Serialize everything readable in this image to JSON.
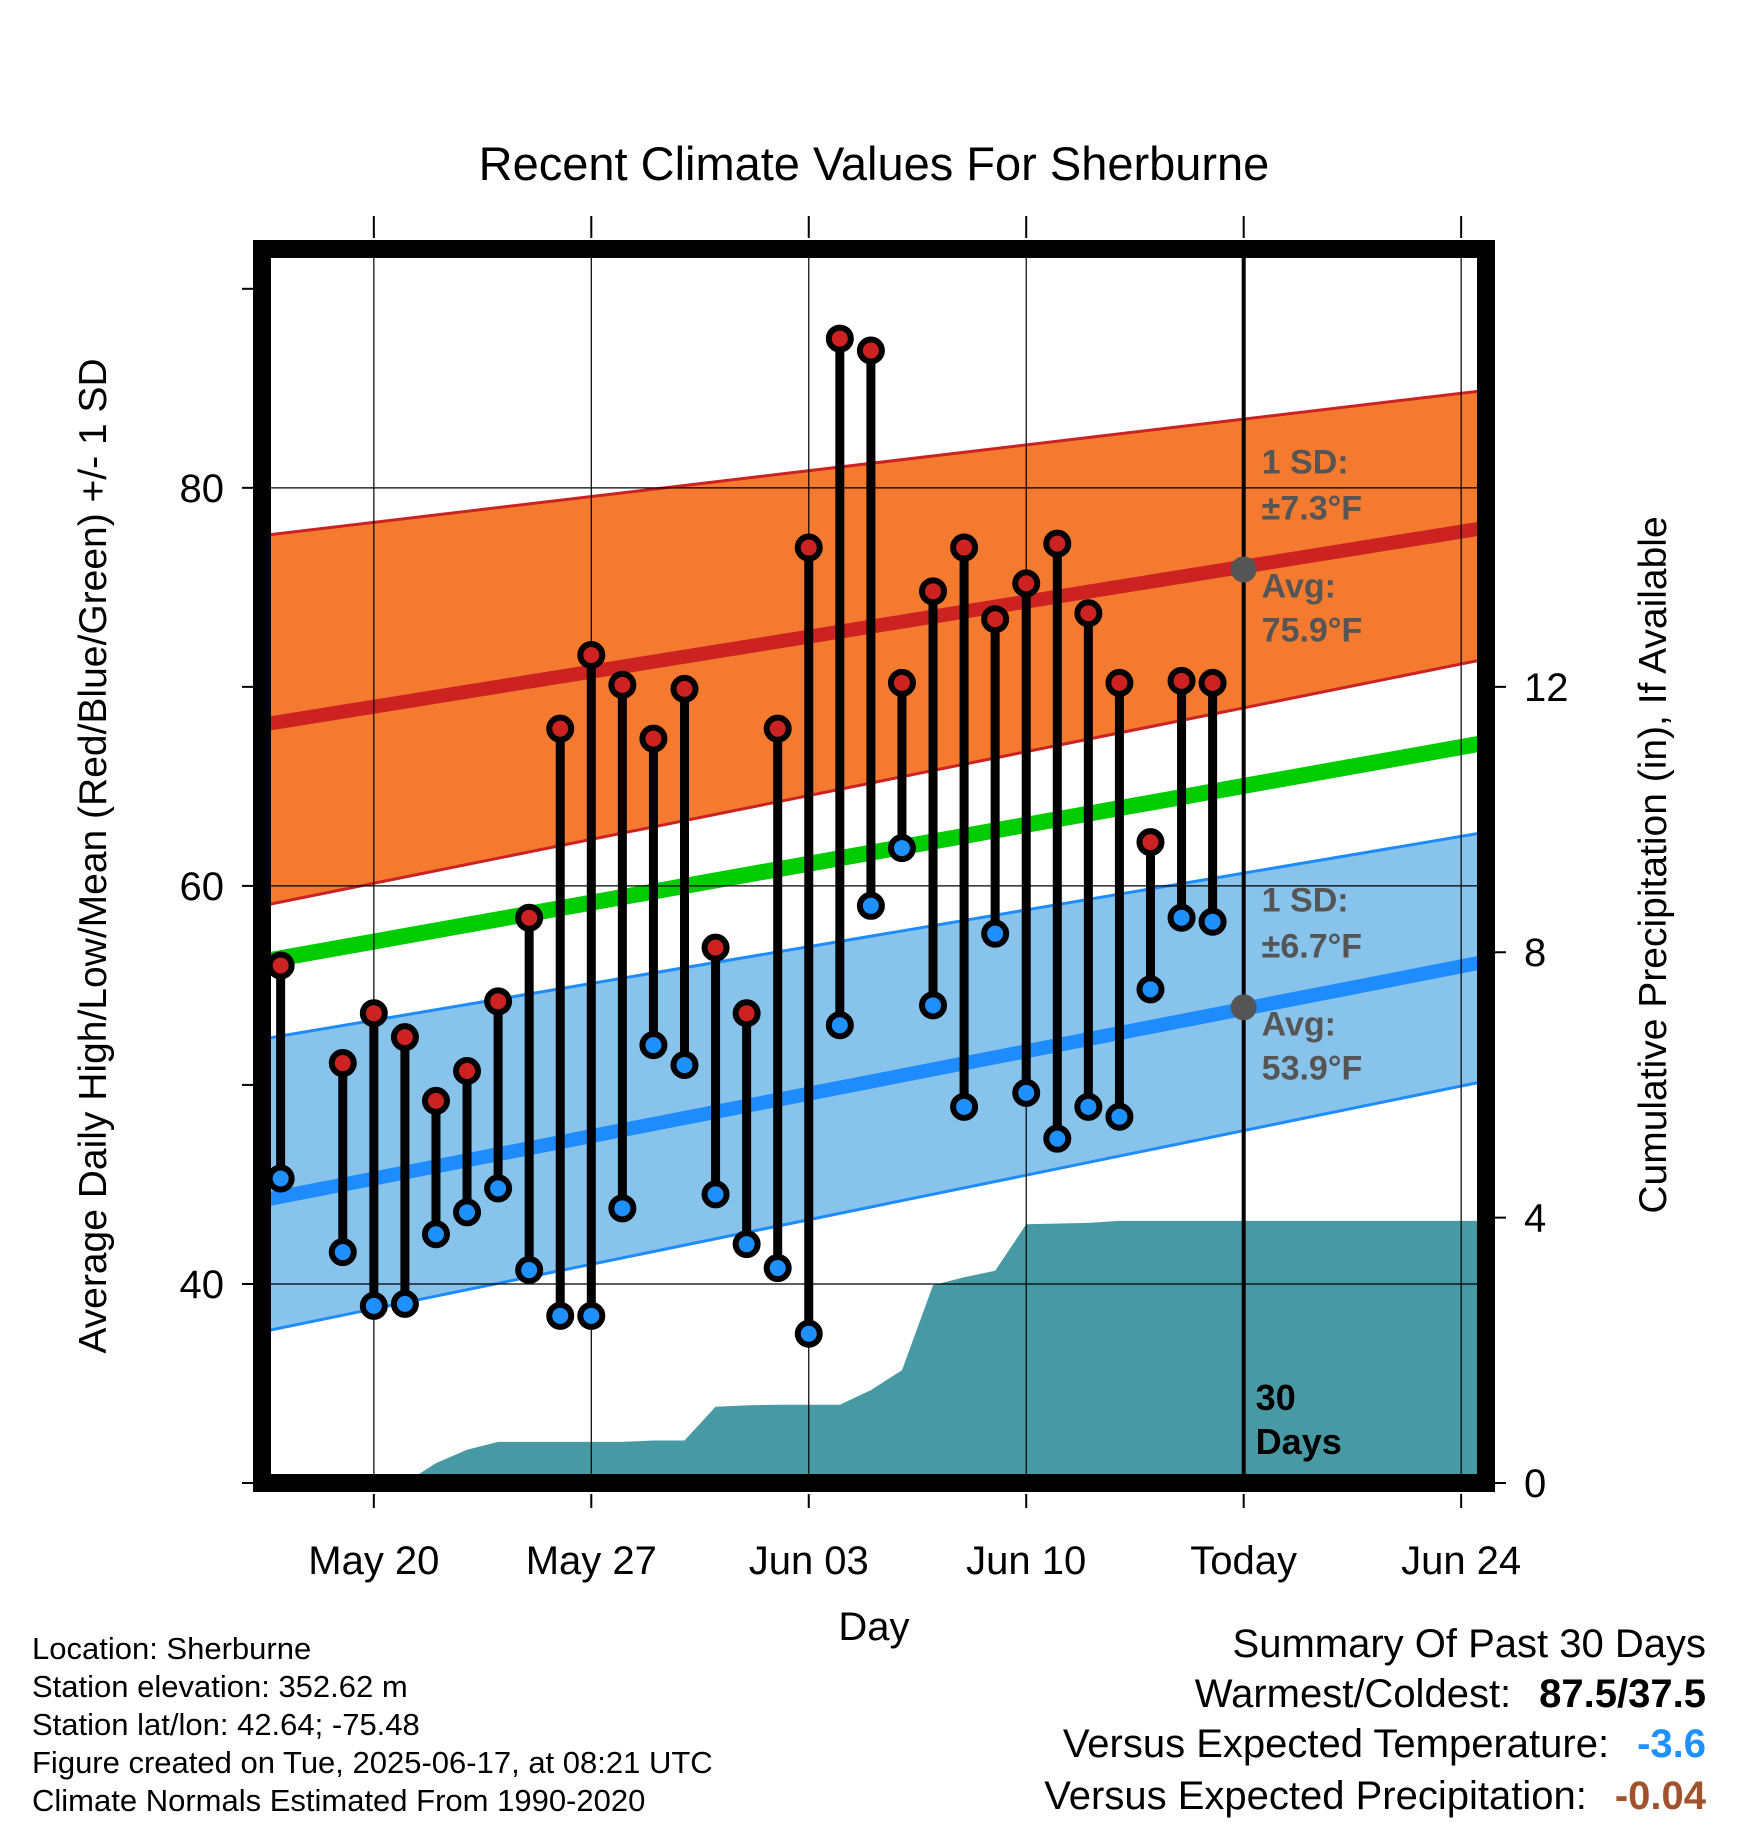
{
  "chart_data": {
    "type": "line",
    "title": "Recent Climate Values For Sherburne",
    "xlabel": "Day",
    "ylabel": "Average Daily High/Low/Mean (Red/Blue/Green) +/- 1 SD",
    "y2label": "Cumulative Precipitation (in), If Available",
    "xlim": [
      -3.6,
      35.8
    ],
    "ylim": [
      30,
      92
    ],
    "y2lim": [
      0,
      18.6
    ],
    "x_ticks": [
      {
        "day": 0,
        "label": "May 20"
      },
      {
        "day": 7,
        "label": "May 27"
      },
      {
        "day": 14,
        "label": "Jun 03"
      },
      {
        "day": 21,
        "label": "Jun 10"
      },
      {
        "day": 28,
        "label": "Today"
      },
      {
        "day": 35,
        "label": "Jun 24"
      }
    ],
    "y_ticks_labeled": [
      40,
      60,
      80
    ],
    "y_ticks_minor": [
      30,
      50,
      70,
      90
    ],
    "y2_ticks": [
      0,
      4,
      8,
      12
    ],
    "today_day": 28,
    "normals": {
      "high": {
        "mean_start": 68.1,
        "mean_end": 78.0,
        "upper_start": 77.6,
        "upper_end": 84.9,
        "lower_start": 59.0,
        "lower_end": 71.4,
        "sd_label": "1 SD:",
        "sd_value": "±7.3°F",
        "avg_label": "Avg:",
        "avg_value": "75.9°F",
        "avg_at_today": 75.9
      },
      "mean": {
        "start": 56.2,
        "end": 67.2
      },
      "low": {
        "mean_start": 44.2,
        "mean_end": 56.2,
        "upper_start": 52.3,
        "upper_end": 62.7,
        "lower_start": 37.6,
        "lower_end": 50.2,
        "sd_label": "1 SD:",
        "sd_value": "±6.7°F",
        "avg_label": "Avg:",
        "avg_value": "53.9°F",
        "avg_at_today": 53.9
      }
    },
    "daily": [
      {
        "day": -3,
        "high": 56.0,
        "low": 45.3
      },
      {
        "day": -1,
        "high": 51.1,
        "low": 41.6
      },
      {
        "day": 0,
        "high": 53.6,
        "low": 38.9
      },
      {
        "day": 1,
        "high": 52.4,
        "low": 39.0
      },
      {
        "day": 2,
        "high": 49.2,
        "low": 42.5
      },
      {
        "day": 3,
        "high": 50.7,
        "low": 43.6
      },
      {
        "day": 4,
        "high": 54.2,
        "low": 44.8
      },
      {
        "day": 5,
        "high": 58.4,
        "low": 40.7
      },
      {
        "day": 6,
        "high": 67.9,
        "low": 38.4
      },
      {
        "day": 7,
        "high": 71.6,
        "low": 38.4
      },
      {
        "day": 8,
        "high": 70.1,
        "low": 43.8
      },
      {
        "day": 9,
        "high": 67.4,
        "low": 52.0
      },
      {
        "day": 10,
        "high": 69.9,
        "low": 51.0
      },
      {
        "day": 11,
        "high": 56.9,
        "low": 44.5
      },
      {
        "day": 12,
        "high": 53.6,
        "low": 42.0
      },
      {
        "day": 13,
        "high": 67.9,
        "low": 40.8
      },
      {
        "day": 14,
        "high": 77.0,
        "low": 37.5
      },
      {
        "day": 15,
        "high": 87.5,
        "low": 53.0
      },
      {
        "day": 16,
        "high": 86.9,
        "low": 59.0
      },
      {
        "day": 17,
        "high": 70.2,
        "low": 61.9
      },
      {
        "day": 18,
        "high": 74.8,
        "low": 54.0
      },
      {
        "day": 19,
        "high": 77.0,
        "low": 48.9
      },
      {
        "day": 20,
        "high": 73.4,
        "low": 57.6
      },
      {
        "day": 21,
        "high": 75.2,
        "low": 49.6
      },
      {
        "day": 22,
        "high": 77.2,
        "low": 47.3
      },
      {
        "day": 23,
        "high": 73.7,
        "low": 48.9
      },
      {
        "day": 24,
        "high": 70.2,
        "low": 48.4
      },
      {
        "day": 25,
        "high": 62.2,
        "low": 54.8
      },
      {
        "day": 26,
        "high": 70.3,
        "low": 58.4
      },
      {
        "day": 27,
        "high": 70.2,
        "low": 58.2
      }
    ],
    "precip_cumulative": [
      {
        "day": -3.6,
        "in": 0
      },
      {
        "day": 1,
        "in": 0
      },
      {
        "day": 2,
        "in": 0.3
      },
      {
        "day": 3,
        "in": 0.5
      },
      {
        "day": 4,
        "in": 0.62
      },
      {
        "day": 5,
        "in": 0.62
      },
      {
        "day": 8,
        "in": 0.62
      },
      {
        "day": 9,
        "in": 0.64
      },
      {
        "day": 10,
        "in": 0.64
      },
      {
        "day": 11,
        "in": 1.15
      },
      {
        "day": 12,
        "in": 1.17
      },
      {
        "day": 13,
        "in": 1.18
      },
      {
        "day": 15,
        "in": 1.18
      },
      {
        "day": 16,
        "in": 1.4
      },
      {
        "day": 17,
        "in": 1.7
      },
      {
        "day": 18,
        "in": 2.98
      },
      {
        "day": 19,
        "in": 3.1
      },
      {
        "day": 20,
        "in": 3.2
      },
      {
        "day": 21,
        "in": 3.9
      },
      {
        "day": 23,
        "in": 3.92
      },
      {
        "day": 24,
        "in": 3.95
      },
      {
        "day": 28,
        "in": 3.95
      },
      {
        "day": 35.8,
        "in": 3.95
      }
    ],
    "window_label_line1": "30",
    "window_label_line2": "Days"
  },
  "footer": {
    "location": "Location: Sherburne",
    "elevation": "Station elevation: 352.62 m",
    "latlon": "Station lat/lon: 42.64; -75.48",
    "created": "Figure created on Tue, 2025-06-17, at 08:21 UTC",
    "normals": "Climate Normals Estimated From 1990-2020"
  },
  "summary": {
    "title": "Summary Of Past 30 Days",
    "warm_cold_label": "Warmest/Coldest:",
    "warm_cold_value": "87.5/37.5",
    "temp_label": "Versus Expected Temperature:",
    "temp_value": "-3.6",
    "temp_color": "#1e90ff",
    "precip_label": "Versus Expected Precipitation:",
    "precip_value": "-0.04",
    "precip_color": "#a0522d"
  },
  "colors": {
    "high_band": "#f47a30",
    "high_line": "#cc2222",
    "low_band": "#87c3ea",
    "low_line": "#1e8cff",
    "mean_line": "#00cc00",
    "precip_fill": "#479aa3",
    "high_marker": "#cc2222",
    "low_marker": "#1e90ff",
    "normal_label": "#555555"
  }
}
